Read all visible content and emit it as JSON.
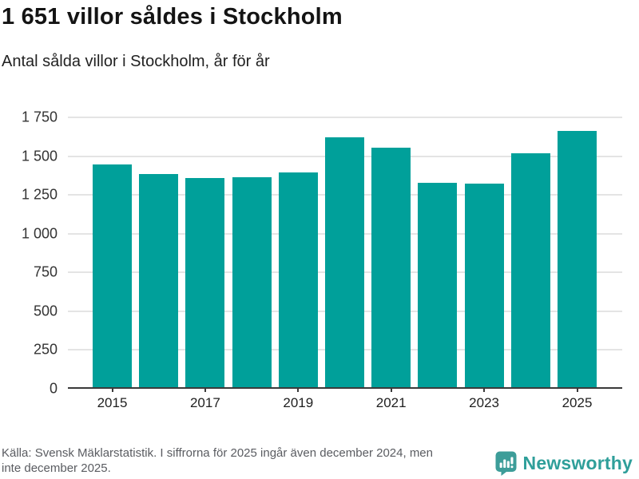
{
  "header": {
    "title": "1 651 villor såldes i Stockholm",
    "subtitle": "Antal sålda villor i Stockholm, år för år"
  },
  "chart_data": {
    "type": "bar",
    "categories": [
      "2015",
      "2016",
      "2017",
      "2018",
      "2019",
      "2020",
      "2021",
      "2022",
      "2023",
      "2024",
      "2025"
    ],
    "values": [
      1435,
      1375,
      1348,
      1352,
      1383,
      1610,
      1545,
      1320,
      1310,
      1510,
      1651
    ],
    "title": "1 651 villor såldes i Stockholm",
    "subtitle": "Antal sålda villor i Stockholm, år för år",
    "xlabel": "",
    "ylabel": "",
    "ylim": [
      0,
      1750
    ],
    "y_ticks": [
      0,
      250,
      500,
      750,
      1000,
      1250,
      1500,
      1750
    ],
    "y_tick_labels": [
      "0",
      "250",
      "500",
      "750",
      "1 000",
      "1 250",
      "1 500",
      "1 750"
    ],
    "x_tick_labels_shown": [
      "2015",
      "2017",
      "2019",
      "2021",
      "2023",
      "2025"
    ],
    "grid": true,
    "legend": false,
    "bar_color": "#00a09a",
    "gridline_color": "#e4e4e4",
    "axis_color": "#3a3a3a"
  },
  "footer": {
    "source_line1": "Källa: Svensk Mäklarstatistik. I siffrorna för 2025 ingår även december 2024, men",
    "source_line2": "inte december 2025.",
    "brand": "Newsworthy",
    "brand_color": "#2f9f9a",
    "logo_icon": "bar-chart-speech-bubble"
  }
}
